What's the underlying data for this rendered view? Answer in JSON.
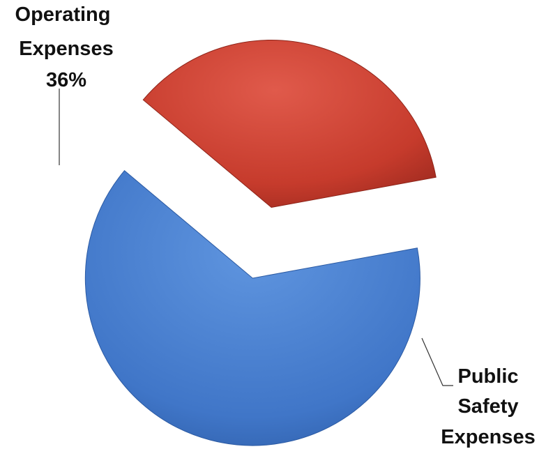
{
  "chart_data": {
    "type": "pie",
    "exploded": true,
    "categories": [
      "Operating Expenses",
      "Public Safety Expenses"
    ],
    "values": [
      36,
      64
    ],
    "unit": "%",
    "colors": [
      "#c0392b",
      "#3f74c6"
    ],
    "slices": [
      {
        "label_lines": [
          "Operating",
          "Expenses"
        ],
        "value_text": "36%",
        "value": 36,
        "color": "#c0392b"
      },
      {
        "label_lines": [
          "Public",
          "Safety",
          "Expenses"
        ],
        "value_text": "",
        "value": 64,
        "color": "#3f74c6"
      }
    ],
    "title": "",
    "legend": "none"
  }
}
